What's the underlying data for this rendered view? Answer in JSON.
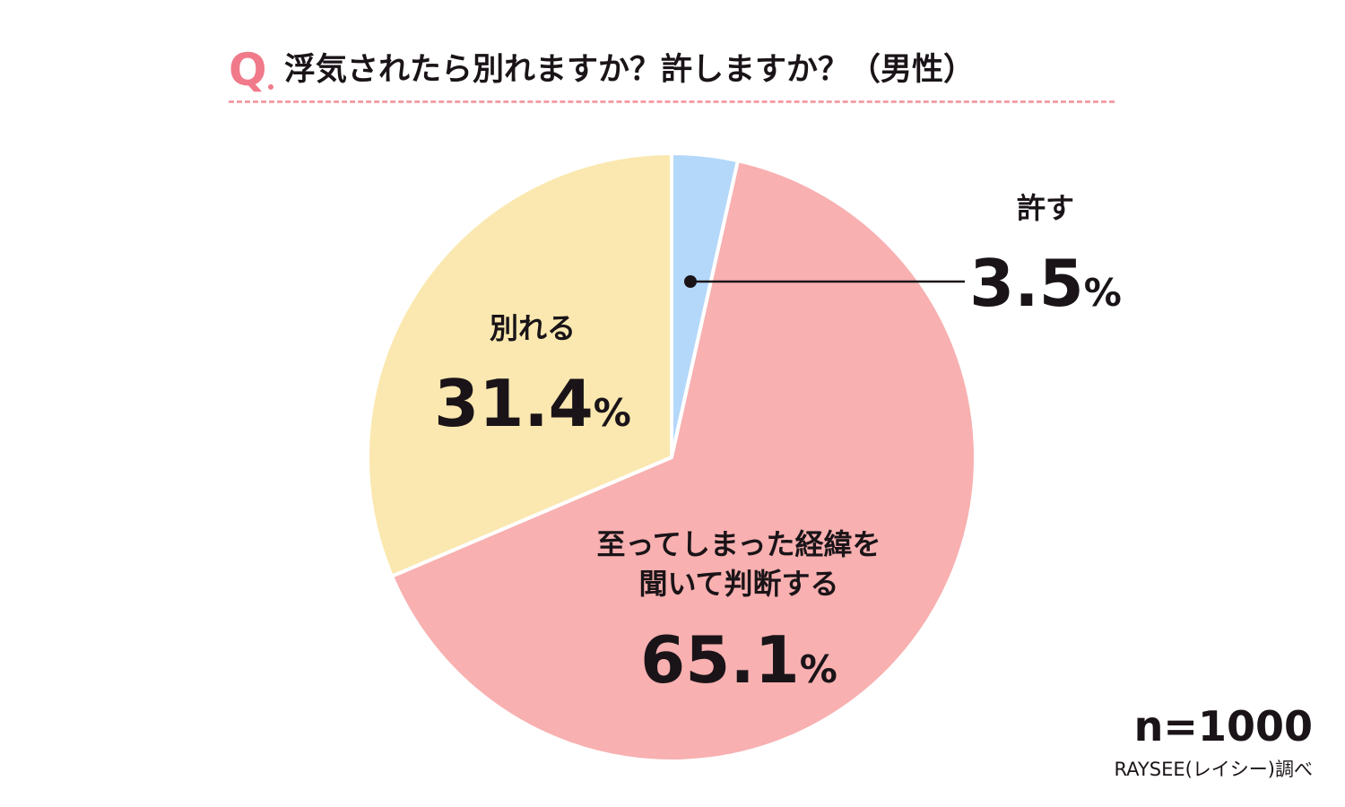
{
  "header": {
    "q_mark": "Q",
    "title": "浮気されたら別れますか？許しますか？（男性）"
  },
  "chart_data": {
    "type": "pie",
    "title": "浮気されたら別れますか？許しますか？（男性）",
    "start": "top",
    "direction": "clockwise",
    "slices": [
      {
        "label": "許す",
        "value": 3.5,
        "display_value": "3.5",
        "unit": "%",
        "color": "#b4d8fa"
      },
      {
        "label": "至ってしまった経緯を聞いて判断する",
        "label_lines": [
          "至ってしまった経緯を",
          "聞いて判断する"
        ],
        "value": 65.1,
        "display_value": "65.1",
        "unit": "%",
        "color": "#f8b0b0"
      },
      {
        "label": "別れる",
        "value": 31.4,
        "display_value": "31.4",
        "unit": "%",
        "color": "#fbe8b0"
      }
    ]
  },
  "footer": {
    "sample": "n=1000",
    "source": "RAYSEE(レイシー)調べ"
  },
  "colors": {
    "accent": "#f07a8a",
    "rule": "#f3a0a8",
    "text": "#1a1418",
    "slice_border": "#ffffff"
  }
}
